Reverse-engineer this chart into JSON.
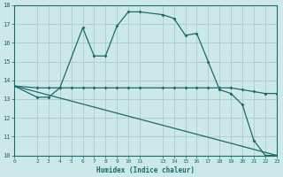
{
  "xlabel": "Humidex (Indice chaleur)",
  "bg_color": "#cce8e8",
  "grid_color": "#aacccc",
  "line_color": "#1a6b6b",
  "xlim": [
    0,
    23
  ],
  "ylim": [
    10,
    18
  ],
  "xticks": [
    0,
    2,
    3,
    4,
    5,
    6,
    7,
    8,
    9,
    10,
    11,
    13,
    14,
    15,
    16,
    17,
    18,
    19,
    20,
    21,
    22,
    23
  ],
  "yticks": [
    10,
    11,
    12,
    13,
    14,
    15,
    16,
    17,
    18
  ],
  "curve1_x": [
    0,
    2,
    3,
    4,
    6,
    7,
    8,
    9,
    10,
    11,
    13,
    14,
    15,
    16,
    17,
    18,
    19,
    20,
    21,
    22,
    23
  ],
  "curve1_y": [
    13.7,
    13.1,
    13.1,
    13.6,
    16.8,
    15.3,
    15.3,
    16.9,
    17.65,
    17.65,
    17.5,
    17.3,
    16.4,
    16.5,
    15.0,
    13.5,
    13.3,
    12.7,
    10.8,
    10.0,
    10.0
  ],
  "curve2_x": [
    0,
    2,
    3,
    4,
    5,
    6,
    7,
    8,
    9,
    10,
    11,
    13,
    14,
    15,
    16,
    17,
    18,
    19,
    20,
    21,
    22,
    23
  ],
  "curve2_y": [
    13.7,
    13.6,
    13.6,
    13.6,
    13.6,
    13.6,
    13.6,
    13.6,
    13.6,
    13.6,
    13.6,
    13.6,
    13.6,
    13.6,
    13.6,
    13.6,
    13.6,
    13.6,
    13.5,
    13.4,
    13.3,
    13.3
  ],
  "curve3_x": [
    0,
    23
  ],
  "curve3_y": [
    13.7,
    10.0
  ]
}
